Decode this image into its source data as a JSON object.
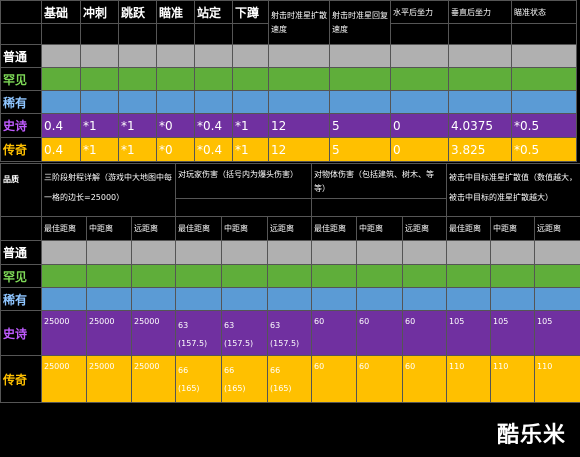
{
  "table1": {
    "header": [
      "",
      "基础",
      "冲刺",
      "跳跃",
      "瞄准",
      "站定",
      "下蹲",
      "射击时准星扩散速度",
      "射击时准星回复速度",
      "水平后坐力",
      "垂直后坐力",
      "瞄准状态"
    ],
    "rows": [
      {
        "label": "普通",
        "color": "#b0b0b0",
        "values": [
          "",
          "",
          "",
          "",
          "",
          "",
          "",
          "",
          "",
          "",
          ""
        ]
      },
      {
        "label": "罕见",
        "color": "#5fae3a",
        "values": [
          "",
          "",
          "",
          "",
          "",
          "",
          "",
          "",
          "",
          "",
          ""
        ]
      },
      {
        "label": "稀有",
        "color": "#5b9bd5",
        "values": [
          "",
          "",
          "",
          "",
          "",
          "",
          "",
          "",
          "",
          "",
          ""
        ]
      },
      {
        "label": "史诗",
        "color": "#7030a0",
        "values": [
          "0.4",
          "*1",
          "*1",
          "*0",
          "*0.4",
          "*1",
          "12",
          "5",
          "0",
          "4.0375",
          "*0.5"
        ]
      },
      {
        "label": "传奇",
        "color": "#ffc000",
        "values": [
          "0.4",
          "*1",
          "*1",
          "*0",
          "*0.4",
          "*1",
          "12",
          "5",
          "0",
          "3.825",
          "*0.5"
        ]
      }
    ]
  },
  "table2": {
    "quality_label": "品质",
    "group_headers": [
      "三阶段射程详解（游戏中大地图中每一格的边长=25000）",
      "对玩家伤害（括号内为爆头伤害）",
      "对物体伤害（包括建筑、树木、等等）",
      "被击中目标准星扩散值（数值越大，被击中目标的准星扩散越大）"
    ],
    "sub_headers": [
      "最佳距离",
      "中距离",
      "远距离",
      "最佳距离",
      "中距离",
      "远距离",
      "最佳距离",
      "中距离",
      "远距离",
      "最佳距离",
      "中距离",
      "远距离"
    ],
    "rows": [
      {
        "label": "普通",
        "values": [
          "",
          "",
          "",
          "",
          "",
          "",
          "",
          "",
          "",
          "",
          "",
          ""
        ]
      },
      {
        "label": "罕见",
        "values": [
          "",
          "",
          "",
          "",
          "",
          "",
          "",
          "",
          "",
          "",
          "",
          ""
        ]
      },
      {
        "label": "稀有",
        "values": [
          "",
          "",
          "",
          "",
          "",
          "",
          "",
          "",
          "",
          "",
          "",
          ""
        ]
      },
      {
        "label": "史诗",
        "values": [
          "25000",
          "25000",
          "25000",
          "63",
          "63",
          "63",
          "60",
          "60",
          "60",
          "105",
          "105",
          "105"
        ],
        "sub": [
          "",
          "",
          "",
          "(157.5)",
          "(157.5)",
          "(157.5)",
          "",
          "",
          "",
          "",
          "",
          ""
        ]
      },
      {
        "label": "传奇",
        "values": [
          "25000",
          "25000",
          "25000",
          "66",
          "66",
          "66",
          "60",
          "60",
          "60",
          "110",
          "110",
          "110"
        ],
        "sub": [
          "",
          "",
          "",
          "(165)",
          "(165)",
          "(165)",
          "",
          "",
          "",
          "",
          "",
          ""
        ]
      }
    ]
  },
  "watermark": "酷乐米"
}
